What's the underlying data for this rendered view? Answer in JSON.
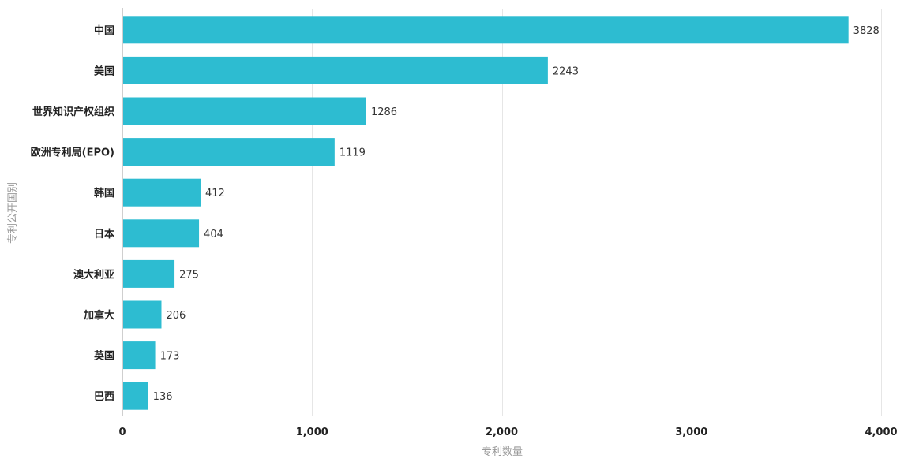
{
  "chart_data": {
    "type": "bar",
    "orientation": "horizontal",
    "categories": [
      "中国",
      "美国",
      "世界知识产权组织",
      "欧洲专利局(EPO)",
      "韩国",
      "日本",
      "澳大利亚",
      "加拿大",
      "英国",
      "巴西"
    ],
    "values": [
      3828,
      2243,
      1286,
      1119,
      412,
      404,
      275,
      206,
      173,
      136
    ],
    "data_labels": [
      "3828",
      "2243",
      "1286",
      "1119",
      "412",
      "404",
      "275",
      "206",
      "173",
      "136"
    ],
    "xlabel": "专利数量",
    "ylabel": "专利公开国别",
    "xlim": [
      0,
      4000
    ],
    "x_ticks": [
      0,
      1000,
      2000,
      3000,
      4000
    ],
    "x_tick_labels": [
      "0",
      "1,000",
      "2,000",
      "3,000",
      "4,000"
    ],
    "grid": true,
    "bar_color": "#2dbcd1"
  }
}
